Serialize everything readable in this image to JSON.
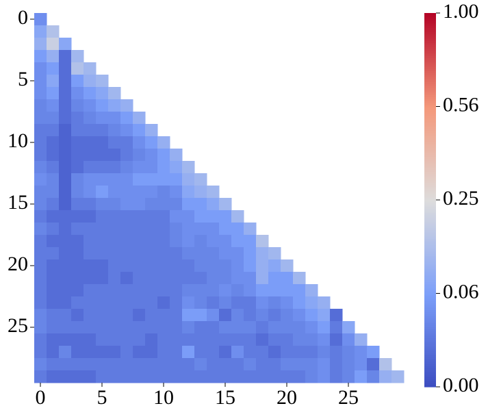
{
  "chart_data": {
    "type": "heatmap",
    "xticks": [
      0,
      5,
      10,
      15,
      20,
      25
    ],
    "yticks": [
      0,
      5,
      10,
      15,
      20,
      25
    ],
    "colormap": "coolwarm",
    "colorbar_power": 0.5,
    "clim": [
      0,
      1
    ],
    "colorbar_ticks": [
      {
        "value": 0,
        "label": "0.00"
      },
      {
        "value": 0.0625,
        "label": "0.06"
      },
      0.25,
      {
        "value": 0.5625,
        "label": "0.56"
      },
      {
        "value": 1,
        "label": "1.00"
      }
    ],
    "values": [
      [
        0.04
      ],
      [
        0.08,
        0.15
      ],
      [
        0.1,
        0.2,
        0.08
      ],
      [
        0.06,
        0.1,
        0.01,
        0.12
      ],
      [
        0.04,
        0.06,
        0.01,
        0.15,
        0.12
      ],
      [
        0.04,
        0.08,
        0.01,
        0.06,
        0.1,
        0.12
      ],
      [
        0.04,
        0.06,
        0.01,
        0.04,
        0.06,
        0.08,
        0.12
      ],
      [
        0.03,
        0.04,
        0.01,
        0.03,
        0.04,
        0.06,
        0.08,
        0.1
      ],
      [
        0.03,
        0.03,
        0.01,
        0.02,
        0.03,
        0.04,
        0.04,
        0.06,
        0.1
      ],
      [
        0.02,
        0.02,
        0.005,
        0.02,
        0.02,
        0.02,
        0.03,
        0.04,
        0.06,
        0.1
      ],
      [
        0.02,
        0.01,
        0.005,
        0.01,
        0.01,
        0.01,
        0.02,
        0.02,
        0.04,
        0.06,
        0.1
      ],
      [
        0.02,
        0.01,
        0.005,
        0.01,
        0.01,
        0.01,
        0.01,
        0.02,
        0.03,
        0.04,
        0.06,
        0.1
      ],
      [
        0.03,
        0.02,
        0.005,
        0.01,
        0.02,
        0.02,
        0.02,
        0.03,
        0.04,
        0.04,
        0.06,
        0.08,
        0.12
      ],
      [
        0.04,
        0.03,
        0.005,
        0.03,
        0.04,
        0.04,
        0.04,
        0.04,
        0.06,
        0.06,
        0.06,
        0.06,
        0.1,
        0.12
      ],
      [
        0.03,
        0.03,
        0.005,
        0.03,
        0.04,
        0.06,
        0.04,
        0.04,
        0.04,
        0.04,
        0.03,
        0.04,
        0.08,
        0.1,
        0.12
      ],
      [
        0.03,
        0.02,
        0.005,
        0.02,
        0.02,
        0.03,
        0.03,
        0.04,
        0.04,
        0.03,
        0.03,
        0.03,
        0.06,
        0.06,
        0.08,
        0.12
      ],
      [
        0.02,
        0.01,
        0.01,
        0.01,
        0.01,
        0.02,
        0.02,
        0.02,
        0.02,
        0.02,
        0.02,
        0.04,
        0.04,
        0.06,
        0.06,
        0.06,
        0.12
      ],
      [
        0.03,
        0.02,
        0.01,
        0.02,
        0.02,
        0.02,
        0.02,
        0.02,
        0.02,
        0.02,
        0.02,
        0.03,
        0.04,
        0.04,
        0.04,
        0.06,
        0.06,
        0.1
      ],
      [
        0.02,
        0.01,
        0.01,
        0.01,
        0.02,
        0.02,
        0.02,
        0.02,
        0.02,
        0.02,
        0.02,
        0.03,
        0.04,
        0.03,
        0.04,
        0.04,
        0.06,
        0.06,
        0.15
      ],
      [
        0.02,
        0.02,
        0.01,
        0.01,
        0.02,
        0.02,
        0.02,
        0.02,
        0.02,
        0.02,
        0.02,
        0.02,
        0.03,
        0.03,
        0.03,
        0.04,
        0.04,
        0.06,
        0.1,
        0.12
      ],
      [
        0.02,
        0.01,
        0.01,
        0.01,
        0.01,
        0.01,
        0.02,
        0.02,
        0.02,
        0.02,
        0.02,
        0.02,
        0.02,
        0.03,
        0.03,
        0.03,
        0.04,
        0.06,
        0.1,
        0.08,
        0.12
      ],
      [
        0.02,
        0.01,
        0.01,
        0.01,
        0.01,
        0.01,
        0.02,
        0.01,
        0.02,
        0.02,
        0.02,
        0.02,
        0.02,
        0.02,
        0.03,
        0.03,
        0.04,
        0.04,
        0.1,
        0.06,
        0.06,
        0.12
      ],
      [
        0.02,
        0.01,
        0.01,
        0.01,
        0.02,
        0.02,
        0.02,
        0.02,
        0.02,
        0.02,
        0.02,
        0.02,
        0.03,
        0.03,
        0.03,
        0.04,
        0.03,
        0.04,
        0.06,
        0.06,
        0.06,
        0.06,
        0.1
      ],
      [
        0.02,
        0.01,
        0.01,
        0.02,
        0.02,
        0.02,
        0.02,
        0.02,
        0.02,
        0.02,
        0.01,
        0.02,
        0.04,
        0.03,
        0.02,
        0.03,
        0.02,
        0.02,
        0.04,
        0.03,
        0.04,
        0.06,
        0.08,
        0.1
      ],
      [
        0.03,
        0.02,
        0.02,
        0.01,
        0.02,
        0.02,
        0.02,
        0.02,
        0.01,
        0.02,
        0.02,
        0.02,
        0.06,
        0.06,
        0.04,
        0.01,
        0.03,
        0.02,
        0.03,
        0.02,
        0.03,
        0.04,
        0.06,
        0.08,
        0.01
      ],
      [
        0.03,
        0.02,
        0.02,
        0.02,
        0.02,
        0.02,
        0.02,
        0.02,
        0.02,
        0.02,
        0.02,
        0.02,
        0.03,
        0.02,
        0.02,
        0.03,
        0.03,
        0.03,
        0.02,
        0.03,
        0.03,
        0.03,
        0.04,
        0.06,
        0.02,
        0.08
      ],
      [
        0.02,
        0.01,
        0.01,
        0.01,
        0.01,
        0.02,
        0.02,
        0.02,
        0.02,
        0.01,
        0.02,
        0.02,
        0.02,
        0.02,
        0.02,
        0.02,
        0.02,
        0.02,
        0.01,
        0.02,
        0.02,
        0.03,
        0.03,
        0.04,
        0.01,
        0.04,
        0.1
      ],
      [
        0.02,
        0.01,
        0.03,
        0.01,
        0.01,
        0.01,
        0.01,
        0.02,
        0.01,
        0.01,
        0.02,
        0.02,
        0.06,
        0.02,
        0.02,
        0.01,
        0.04,
        0.02,
        0.02,
        0.01,
        0.02,
        0.02,
        0.02,
        0.03,
        0.02,
        0.03,
        0.04,
        0.06
      ],
      [
        0.03,
        0.02,
        0.02,
        0.02,
        0.02,
        0.02,
        0.02,
        0.02,
        0.02,
        0.02,
        0.02,
        0.02,
        0.02,
        0.03,
        0.02,
        0.02,
        0.02,
        0.03,
        0.02,
        0.02,
        0.03,
        0.03,
        0.03,
        0.04,
        0.02,
        0.03,
        0.04,
        0.01,
        0.15
      ],
      [
        0.02,
        0.01,
        0.01,
        0.01,
        0.01,
        0.02,
        0.02,
        0.02,
        0.02,
        0.02,
        0.02,
        0.02,
        0.02,
        0.02,
        0.02,
        0.02,
        0.02,
        0.02,
        0.02,
        0.02,
        0.02,
        0.02,
        0.03,
        0.04,
        0.02,
        0.03,
        0.06,
        0.03,
        0.1,
        0.12
      ]
    ]
  }
}
